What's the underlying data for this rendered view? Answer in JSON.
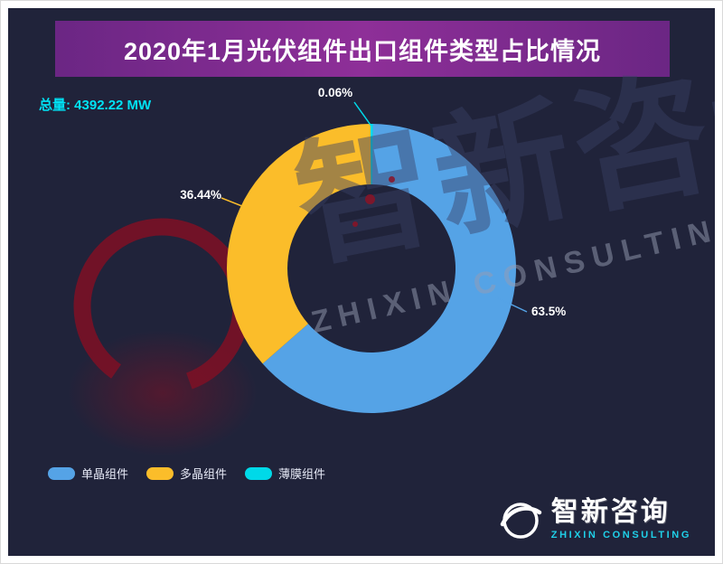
{
  "header": {
    "title": "2020年1月光伏组件出口组件类型占比情况"
  },
  "total": {
    "text": "总量: 4392.22 MW"
  },
  "chart_data": {
    "type": "pie",
    "donut": true,
    "title": "2020年1月光伏组件出口组件类型占比情况",
    "total_value": 4392.22,
    "unit": "MW",
    "series": [
      {
        "name": "薄膜组件",
        "value": 0.06,
        "label": "0.06%",
        "color": "#00d9e8"
      },
      {
        "name": "单晶组件",
        "value": 63.5,
        "label": "63.5%",
        "color": "#55a3e6"
      },
      {
        "name": "多晶组件",
        "value": 36.44,
        "label": "36.44%",
        "color": "#fbbd2a"
      }
    ],
    "legend_position": "bottom-left"
  },
  "legend": {
    "items": [
      {
        "label": "单晶组件",
        "color": "#55a3e6"
      },
      {
        "label": "多晶组件",
        "color": "#fbbd2a"
      },
      {
        "label": "薄膜组件",
        "color": "#00d9e8"
      }
    ]
  },
  "watermark": {
    "cn": "智新咨询",
    "en": "ZHIXIN CONSULTING"
  },
  "logo": {
    "name": "智新咨询",
    "subtitle": "ZHIXIN CONSULTING"
  }
}
